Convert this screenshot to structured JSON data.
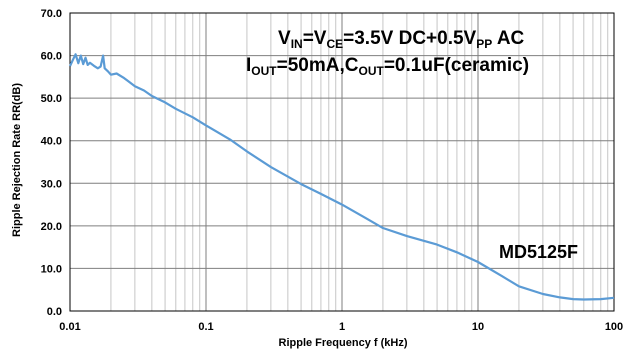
{
  "chart_data": {
    "type": "line",
    "xlabel": "Ripple Frequency f (kHz)",
    "ylabel": "Ripple Rejection Rate RR(dB)",
    "xscale": "log",
    "xlim": [
      0.01,
      100
    ],
    "ylim": [
      0,
      70
    ],
    "x_ticks": [
      "0.01",
      "0.1",
      "1",
      "10",
      "100"
    ],
    "y_ticks": [
      "0.0",
      "10.0",
      "20.0",
      "30.0",
      "40.0",
      "50.0",
      "60.0",
      "70.0"
    ],
    "grid": true,
    "line_color": "#5b9bd5",
    "annotations": {
      "condition_line1": {
        "parts": [
          {
            "text": "V",
            "sub": false
          },
          {
            "text": "IN",
            "sub": true
          },
          {
            "text": "=V",
            "sub": false
          },
          {
            "text": "CE",
            "sub": true
          },
          {
            "text": "=3.5V  DC+0.5V",
            "sub": false
          },
          {
            "text": "PP",
            "sub": true
          },
          {
            "text": "  AC",
            "sub": false
          }
        ]
      },
      "condition_line2": {
        "parts": [
          {
            "text": "I",
            "sub": false
          },
          {
            "text": "OUT",
            "sub": true
          },
          {
            "text": "=50mA,C",
            "sub": false
          },
          {
            "text": "OUT",
            "sub": true
          },
          {
            "text": "=0.1uF(ceramic)",
            "sub": false
          }
        ]
      },
      "model": "MD5125F"
    },
    "series": [
      {
        "x": [
          0.01,
          0.0105,
          0.011,
          0.0115,
          0.012,
          0.0125,
          0.013,
          0.0135,
          0.014,
          0.015,
          0.016,
          0.0168,
          0.0175,
          0.018,
          0.019,
          0.02,
          0.022,
          0.025,
          0.03,
          0.035,
          0.04,
          0.05,
          0.06,
          0.08,
          0.1,
          0.15,
          0.2,
          0.3,
          0.5,
          0.7,
          1,
          1.5,
          2,
          3,
          5,
          7,
          10,
          15,
          20,
          30,
          40,
          50,
          60,
          80,
          100
        ],
        "y": [
          57.5,
          59.0,
          60.3,
          58.2,
          60.0,
          58.0,
          59.5,
          57.8,
          58.3,
          57.6,
          57.0,
          57.4,
          60.0,
          57.0,
          56.3,
          55.5,
          55.8,
          54.7,
          52.8,
          51.8,
          50.5,
          49.0,
          47.5,
          45.5,
          43.6,
          40.3,
          37.5,
          33.8,
          29.8,
          27.5,
          25.0,
          21.8,
          19.5,
          17.6,
          15.6,
          13.8,
          11.5,
          8.2,
          5.8,
          4.0,
          3.2,
          2.8,
          2.7,
          2.8,
          3.1
        ]
      }
    ]
  }
}
